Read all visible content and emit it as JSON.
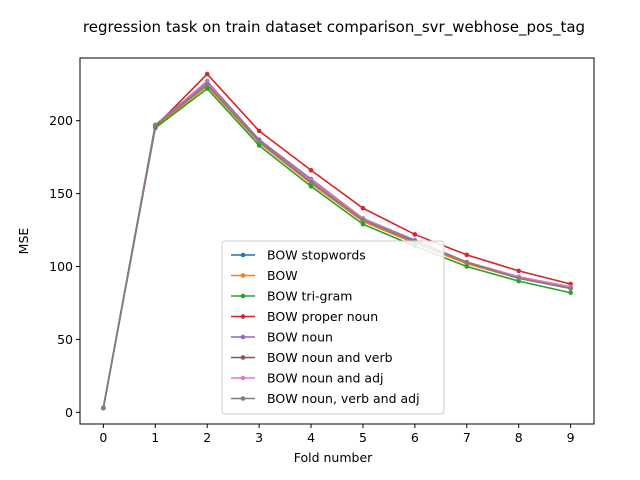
{
  "chart_data": {
    "type": "line",
    "title": "regression task on train dataset comparison_svr_webhose_pos_tag",
    "xlabel": "Fold number",
    "ylabel": "MSE",
    "x": [
      0,
      1,
      2,
      3,
      4,
      5,
      6,
      7,
      8,
      9
    ],
    "xlim": [
      -0.45,
      9.45
    ],
    "ylim": [
      -8,
      243
    ],
    "xticks": [
      0,
      1,
      2,
      3,
      4,
      5,
      6,
      7,
      8,
      9
    ],
    "yticks": [
      0,
      50,
      100,
      150,
      200
    ],
    "grid": false,
    "legend_position": "lower center",
    "series": [
      {
        "name": "BOW stopwords",
        "color": "#1f77b4",
        "values": [
          3,
          196,
          224,
          185,
          157,
          131,
          116,
          102,
          92,
          85
        ]
      },
      {
        "name": "BOW",
        "color": "#ff7f0e",
        "values": [
          3,
          196,
          224,
          185,
          157,
          131,
          116,
          102,
          92,
          85
        ]
      },
      {
        "name": "BOW tri-gram",
        "color": "#2ca02c",
        "values": [
          3,
          195,
          222,
          183,
          155,
          129,
          114,
          100,
          90,
          82
        ]
      },
      {
        "name": "BOW proper noun",
        "color": "#d62728",
        "values": [
          3,
          196,
          232,
          193,
          166,
          140,
          122,
          108,
          97,
          88
        ]
      },
      {
        "name": "BOW noun",
        "color": "#9467bd",
        "values": [
          3,
          197,
          227,
          187,
          160,
          133,
          118,
          103,
          93,
          86
        ]
      },
      {
        "name": "BOW noun and verb",
        "color": "#8c564b",
        "values": [
          3,
          197,
          225,
          186,
          158,
          132,
          117,
          103,
          92,
          85
        ]
      },
      {
        "name": "BOW noun and adj",
        "color": "#e377c2",
        "values": [
          3,
          197,
          226,
          186,
          159,
          133,
          117,
          103,
          93,
          86
        ]
      },
      {
        "name": "BOW noun, verb and adj",
        "color": "#7f7f7f",
        "values": [
          3,
          197,
          225,
          186,
          158,
          132,
          117,
          103,
          92,
          85
        ]
      }
    ]
  }
}
